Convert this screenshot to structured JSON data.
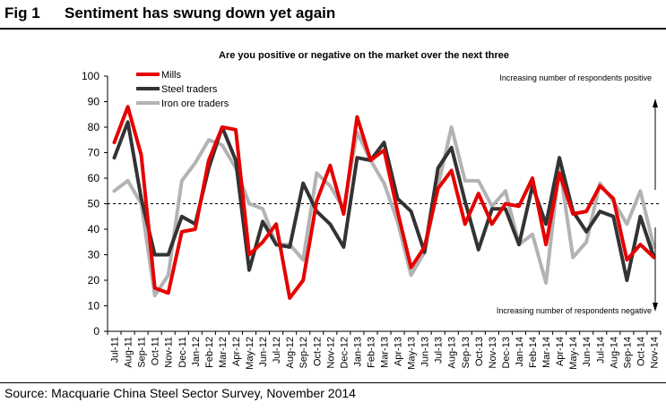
{
  "header": {
    "fig_label": "Fig 1",
    "fig_title": "Sentiment has swung down yet again"
  },
  "source": "Source: Macquarie China Steel Sector Survey, November 2014",
  "chart_data": {
    "type": "line",
    "title": "Are you positive or negative on the market over the next three",
    "xlabel": "",
    "ylabel": "",
    "ylim": [
      0,
      100
    ],
    "yticks": [
      "0",
      "10",
      "20",
      "30",
      "40",
      "50",
      "60",
      "70",
      "80",
      "90",
      "100"
    ],
    "reference_line": 50,
    "annotations": {
      "top": "Increasing number of respondents positive",
      "bottom": "Increasing number of respondents negative"
    },
    "categories": [
      "Jul-11",
      "Aug-11",
      "Sep-11",
      "Oct-11",
      "Nov-11",
      "Dec-11",
      "Jan-12",
      "Feb-12",
      "Mar-12",
      "Apr-12",
      "May-12",
      "Jun-12",
      "Jul-12",
      "Aug-12",
      "Sep-12",
      "Oct-12",
      "Nov-12",
      "Dec-12",
      "Jan-13",
      "Feb-13",
      "Mar-13",
      "Apr-13",
      "May-13",
      "Jun-13",
      "Jul-13",
      "Aug-13",
      "Sep-13",
      "Oct-13",
      "Nov-13",
      "Dec-13",
      "Jan-14",
      "Feb-14",
      "Mar-14",
      "Apr-14",
      "May-14",
      "Jun-14",
      "Jul-14",
      "Aug-14",
      "Sep-14",
      "Oct-14",
      "Nov-14"
    ],
    "series": [
      {
        "name": "Mills",
        "color": "#e60000",
        "values": [
          74,
          88,
          69,
          17,
          15,
          39,
          40,
          67,
          80,
          79,
          30,
          35,
          42,
          13,
          20,
          51,
          65,
          46,
          84,
          67,
          71,
          47,
          25,
          33,
          56,
          63,
          42,
          54,
          42,
          50,
          49,
          60,
          34,
          62,
          46,
          47,
          57,
          52,
          28,
          34,
          29
        ]
      },
      {
        "name": "Steel traders",
        "color": "#333333",
        "values": [
          68,
          82,
          52,
          30,
          30,
          45,
          42,
          64,
          80,
          67,
          24,
          43,
          34,
          33,
          58,
          47,
          42,
          33,
          68,
          67,
          74,
          52,
          47,
          31,
          64,
          72,
          51,
          32,
          48,
          48,
          34,
          57,
          42,
          68,
          47,
          39,
          47,
          45,
          20,
          45,
          29
        ]
      },
      {
        "name": "Iron ore traders",
        "color": "#b3b3b3",
        "values": [
          55,
          59,
          50,
          14,
          22,
          59,
          66,
          75,
          73,
          64,
          50,
          48,
          34,
          34,
          28,
          62,
          57,
          48,
          78,
          67,
          58,
          43,
          22,
          31,
          57,
          80,
          59,
          59,
          49,
          55,
          34,
          38,
          19,
          65,
          29,
          35,
          58,
          51,
          42,
          55,
          33
        ]
      }
    ]
  }
}
